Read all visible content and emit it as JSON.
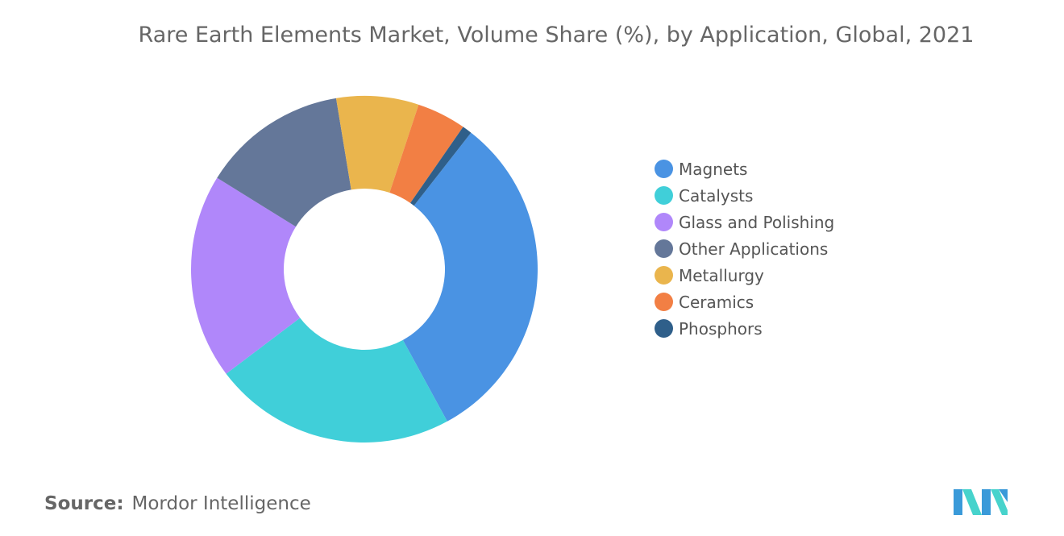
{
  "chart_data": {
    "type": "pie",
    "variant": "donut",
    "title": "Rare Earth Elements Market, Volume Share (%), by Application, Global, 2021",
    "categories": [
      "Magnets",
      "Catalysts",
      "Glass and Polishing",
      "Other Applications",
      "Metallurgy",
      "Ceramics",
      "Phosphors"
    ],
    "values": [
      31.6,
      22.7,
      19.2,
      13.6,
      7.7,
      4.6,
      0.9
    ],
    "colors": [
      "#4a93e3",
      "#40cfd9",
      "#b087fa",
      "#647799",
      "#eab54d",
      "#f27f44",
      "#2f5f8a"
    ],
    "legend_position": "right"
  },
  "source": {
    "prefix": "Source:",
    "text": "Mordor Intelligence"
  },
  "logo": {
    "icon": "mordor-intelligence-logo-icon",
    "colors": [
      "#3a9ad9",
      "#47d3cc"
    ]
  }
}
